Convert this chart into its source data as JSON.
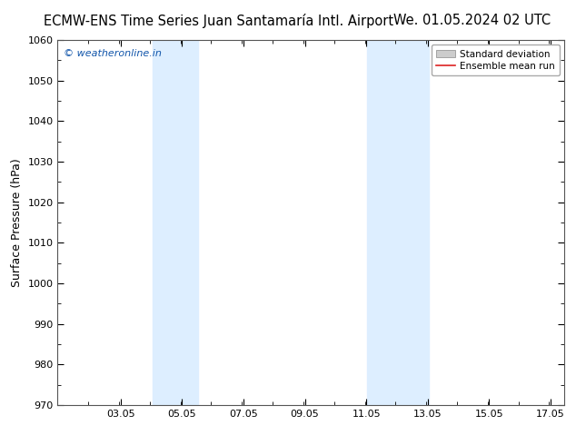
{
  "title_left": "ECMW-ENS Time Series Juan Santamaría Intl. Airport",
  "title_right": "We. 01.05.2024 02 UTC",
  "ylabel": "Surface Pressure (hPa)",
  "ylim": [
    970,
    1060
  ],
  "yticks": [
    970,
    980,
    990,
    1000,
    1010,
    1020,
    1030,
    1040,
    1050,
    1060
  ],
  "xlim_start": 1.0,
  "xlim_end": 17.5,
  "xtick_positions": [
    3.05,
    5.05,
    7.05,
    9.05,
    11.05,
    13.05,
    15.05,
    17.05
  ],
  "xtick_labels": [
    "03.05",
    "05.05",
    "07.05",
    "09.05",
    "11.05",
    "13.05",
    "15.05",
    "17.05"
  ],
  "shade_bands": [
    {
      "xmin": 4.08,
      "xmax": 5.58
    },
    {
      "xmin": 11.08,
      "xmax": 13.08
    }
  ],
  "shade_color": "#ddeeff",
  "background_color": "#ffffff",
  "plot_bg_color": "#ffffff",
  "watermark": "© weatheronline.in",
  "watermark_color": "#1155aa",
  "legend_entries": [
    "Standard deviation",
    "Ensemble mean run"
  ],
  "legend_band_color": "#cccccc",
  "legend_line_color": "#dd2222",
  "title_fontsize": 10.5,
  "ylabel_fontsize": 9,
  "tick_fontsize": 8,
  "watermark_fontsize": 8,
  "legend_fontsize": 7.5
}
